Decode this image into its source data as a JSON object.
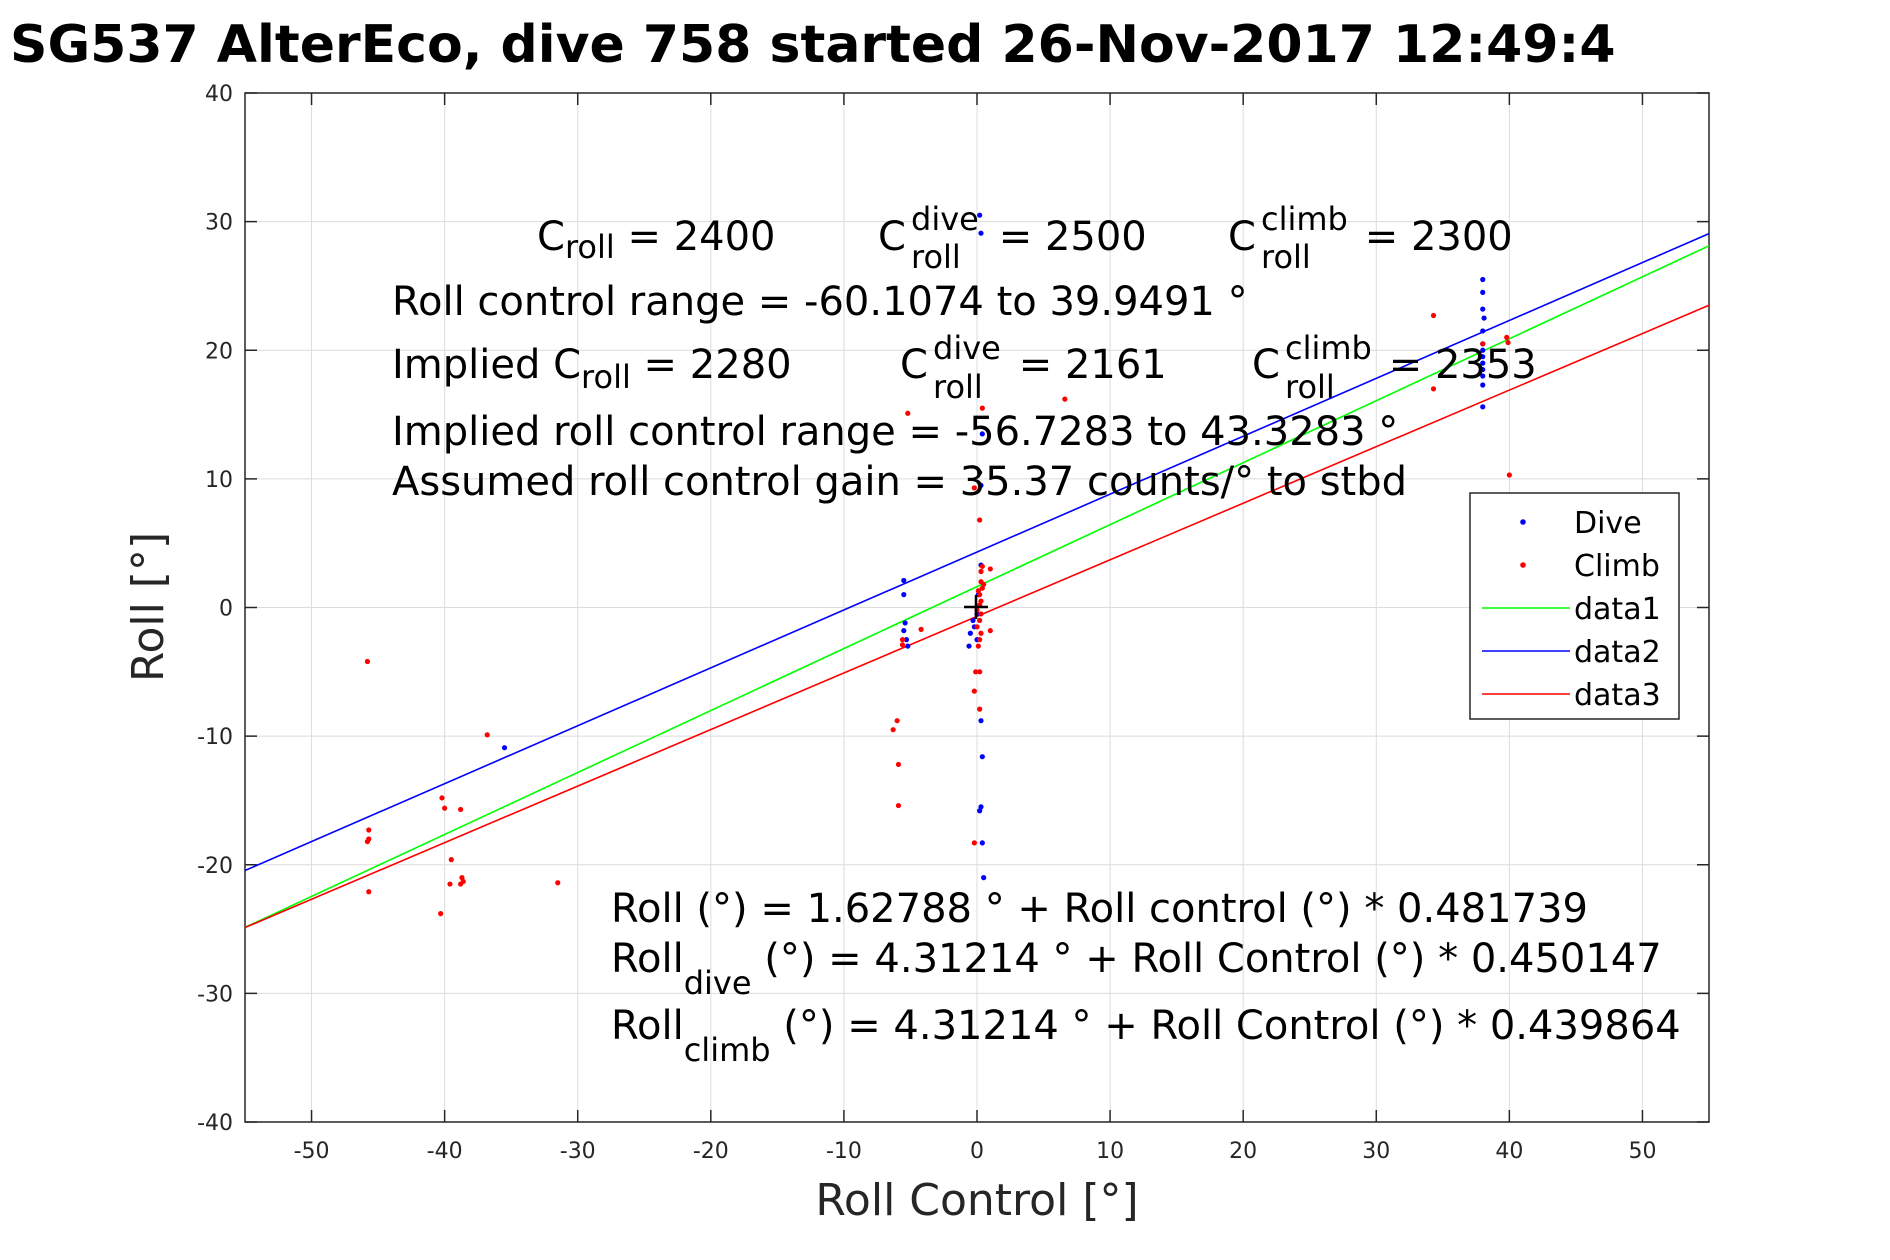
{
  "chart_data": {
    "type": "scatter",
    "title": "SG537 AlterEco, dive 758 started 26-Nov-2017 12:49:4",
    "xlabel": "Roll Control [°]",
    "ylabel": "Roll [°]",
    "xlim": [
      -55,
      55
    ],
    "ylim": [
      -40,
      40
    ],
    "grid": true,
    "legend_position": "right",
    "x_ticks": [
      -50,
      -40,
      -30,
      -20,
      -10,
      0,
      10,
      20,
      30,
      40,
      50
    ],
    "y_ticks": [
      -40,
      -30,
      -20,
      -10,
      0,
      10,
      20,
      30,
      40
    ],
    "x_tick_labels": [
      "-50",
      "-40",
      "-30",
      "-20",
      "-10",
      "0",
      "10",
      "20",
      "30",
      "40",
      "50"
    ],
    "y_tick_labels": [
      "-40",
      "-30",
      "-20",
      "-10",
      "0",
      "10",
      "20",
      "30",
      "40"
    ],
    "series": [
      {
        "name": "Dive",
        "kind": "points",
        "color": "#0000ff",
        "points": [
          [
            0.2,
            30.5
          ],
          [
            0.3,
            29.1
          ],
          [
            0.4,
            13.5
          ],
          [
            0.2,
            10.5
          ],
          [
            0.3,
            9.5
          ],
          [
            0.3,
            3.3
          ],
          [
            0.1,
            1.0
          ],
          [
            0.0,
            -0.5
          ],
          [
            -0.3,
            -1.0
          ],
          [
            -0.5,
            -2.0
          ],
          [
            -0.2,
            -1.5
          ],
          [
            0.0,
            -2.5
          ],
          [
            -0.6,
            -3.0
          ],
          [
            0.3,
            -8.8
          ],
          [
            0.4,
            -11.6
          ],
          [
            0.3,
            -15.5
          ],
          [
            0.2,
            -15.8
          ],
          [
            0.4,
            -18.3
          ],
          [
            0.5,
            -21.0
          ],
          [
            -5.5,
            2.1
          ],
          [
            -5.5,
            1.0
          ],
          [
            -5.4,
            -1.2
          ],
          [
            -5.5,
            -1.8
          ],
          [
            -5.3,
            -2.5
          ],
          [
            -5.2,
            -3.0
          ],
          [
            -35.5,
            -10.9
          ],
          [
            38.0,
            25.5
          ],
          [
            38.0,
            24.5
          ],
          [
            38.0,
            23.2
          ],
          [
            38.1,
            22.5
          ],
          [
            38.0,
            21.5
          ],
          [
            38.0,
            20.5
          ],
          [
            38.0,
            20.0
          ],
          [
            38.0,
            19.5
          ],
          [
            38.0,
            19.0
          ],
          [
            38.0,
            18.5
          ],
          [
            38.0,
            18.0
          ],
          [
            38.0,
            17.3
          ],
          [
            38.0,
            15.6
          ]
        ]
      },
      {
        "name": "Climb",
        "kind": "points",
        "color": "#ff0000",
        "points": [
          [
            -45.8,
            -4.2
          ],
          [
            -45.7,
            -17.3
          ],
          [
            -45.7,
            -18.0
          ],
          [
            -45.8,
            -18.2
          ],
          [
            -45.7,
            -22.1
          ],
          [
            -40.2,
            -14.8
          ],
          [
            -40.0,
            -15.6
          ],
          [
            -40.3,
            -23.8
          ],
          [
            -39.6,
            -21.5
          ],
          [
            -39.5,
            -19.6
          ],
          [
            -38.8,
            -15.7
          ],
          [
            -38.7,
            -21.0
          ],
          [
            -38.6,
            -21.3
          ],
          [
            -38.8,
            -21.5
          ],
          [
            -36.8,
            -9.9
          ],
          [
            -31.5,
            -21.4
          ],
          [
            -5.2,
            15.1
          ],
          [
            -4.2,
            -1.7
          ],
          [
            -5.6,
            -2.5
          ],
          [
            -5.6,
            -2.9
          ],
          [
            -6.0,
            -8.8
          ],
          [
            -6.3,
            -9.5
          ],
          [
            -5.9,
            -12.2
          ],
          [
            -5.9,
            -15.4
          ],
          [
            0.4,
            15.5
          ],
          [
            -0.2,
            9.3
          ],
          [
            0.2,
            6.8
          ],
          [
            0.4,
            3.2
          ],
          [
            0.3,
            2.8
          ],
          [
            0.3,
            2.0
          ],
          [
            0.5,
            1.8
          ],
          [
            0.4,
            1.5
          ],
          [
            0.1,
            1.3
          ],
          [
            0.2,
            1.0
          ],
          [
            0.3,
            0.5
          ],
          [
            0.2,
            0.2
          ],
          [
            0.0,
            -0.2
          ],
          [
            0.3,
            -0.5
          ],
          [
            0.2,
            -1.0
          ],
          [
            0.0,
            -1.5
          ],
          [
            0.3,
            -2.0
          ],
          [
            0.2,
            -2.5
          ],
          [
            0.1,
            -3.0
          ],
          [
            -0.1,
            -5.0
          ],
          [
            0.2,
            -5.0
          ],
          [
            -0.2,
            -6.5
          ],
          [
            0.2,
            -7.9
          ],
          [
            -0.2,
            -18.3
          ],
          [
            1.0,
            3.0
          ],
          [
            1.0,
            -1.8
          ],
          [
            6.6,
            16.2
          ],
          [
            34.3,
            22.7
          ],
          [
            34.3,
            17.0
          ],
          [
            38.0,
            20.5
          ],
          [
            39.8,
            21.0
          ],
          [
            39.9,
            20.6
          ],
          [
            40.0,
            10.3
          ]
        ]
      },
      {
        "name": "data1",
        "kind": "line",
        "color": "#00ff00",
        "x": [
          -55,
          55
        ],
        "y": [
          -24.87,
          28.12
        ]
      },
      {
        "name": "data2",
        "kind": "line",
        "color": "#0000ff",
        "x": [
          -55,
          55
        ],
        "y": [
          -20.45,
          29.07
        ]
      },
      {
        "name": "data3",
        "kind": "line",
        "color": "#ff0000",
        "x": [
          -55,
          55
        ],
        "y": [
          -24.88,
          23.5
        ]
      }
    ]
  },
  "annotations": {
    "c_label": "C",
    "c_roll_sub": "roll",
    "dive_sup": "dive",
    "climb_sup": "climb",
    "c_roll_value": " = 2400",
    "c_roll_dive_value": " = 2500",
    "c_roll_climb_value": " = 2300",
    "control_range": "Roll control range = -60.1074 to 39.9491 °",
    "implied_prefix": "Implied C",
    "implied_c_roll_value": " = 2280",
    "implied_c_roll_dive_value": " = 2161",
    "implied_c_roll_climb_value": " = 2353",
    "implied_range": "Implied roll control range = -56.7283 to 43.3283 °",
    "gain": "Assumed roll control gain = 35.37 counts/° to stbd",
    "fit_all": "Roll (°) = 1.62788 ° + Roll control (°) * 0.481739",
    "roll_label": "Roll",
    "fit_dive_sub": "dive",
    "fit_dive_rest": " (°) = 4.31214 ° + Roll Control (°) * 0.450147",
    "fit_climb_sub": "climb",
    "fit_climb_rest": " (°) = 4.31214 ° + Roll Control (°) * 0.439864"
  }
}
